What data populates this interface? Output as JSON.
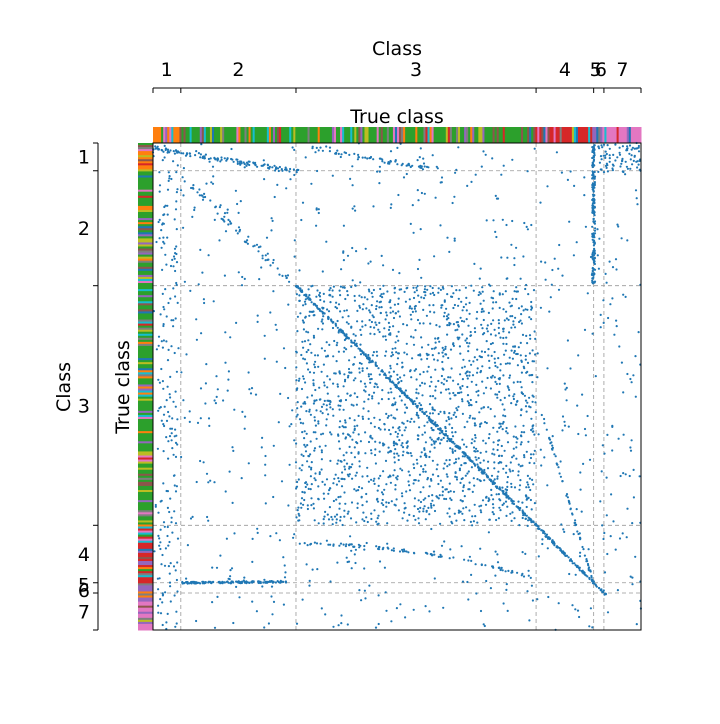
{
  "chart_data": {
    "type": "scatter",
    "title": "",
    "top_axis_label": "Class",
    "left_axis_label": "Class",
    "xlabel": "True class",
    "ylabel": "True class",
    "classes": [
      "1",
      "2",
      "3",
      "4",
      "5",
      "6",
      "7"
    ],
    "class_boundaries": [
      0,
      0.057,
      0.293,
      0.785,
      0.903,
      0.924,
      1.0
    ],
    "class_label_positions": [
      0.028,
      0.175,
      0.539,
      0.844,
      0.907,
      0.918,
      0.962
    ],
    "class_colors": [
      "#ff7f0e",
      "#2ca02c",
      "#2ca02c",
      "#d62728",
      "#9467bd",
      "#e377c2",
      "#1f77b4"
    ],
    "point_color": "#1f77b4",
    "grid_style": "dashed-gray",
    "features": [
      {
        "name": "main-diagonal",
        "from": [
          0.293,
          0.293
        ],
        "to": [
          0.928,
          0.928
        ]
      },
      {
        "name": "class-2-row-band",
        "from": [
          0.06,
          0.905
        ],
        "to": [
          0.275,
          0.905
        ]
      },
      {
        "name": "vertical-band",
        "from": [
          0.905,
          0.0
        ],
        "to": [
          0.905,
          0.29
        ]
      }
    ]
  }
}
